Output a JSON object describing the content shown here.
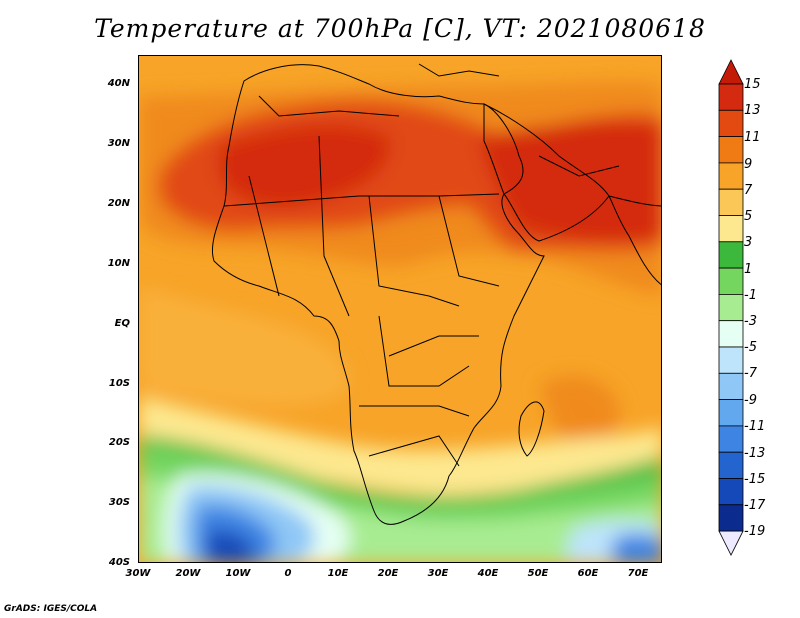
{
  "title": "Temperature at 700hPa [C], VT: 2021080618",
  "credit": "GrADS: IGES/COLA",
  "lat_labels": [
    "40N",
    "30N",
    "20N",
    "10N",
    "EQ",
    "10S",
    "20S",
    "30S",
    "40S"
  ],
  "lon_labels": [
    "30W",
    "20W",
    "10W",
    "0",
    "10E",
    "20E",
    "30E",
    "40E",
    "50E",
    "60E",
    "70E"
  ],
  "colorbar": {
    "labels": [
      "15",
      "13",
      "11",
      "9",
      "7",
      "5",
      "3",
      "1",
      "-1",
      "-3",
      "-5",
      "-7",
      "-9",
      "-11",
      "-13",
      "-15",
      "-17",
      "-19"
    ],
    "colors": [
      "#d42a10",
      "#e24a12",
      "#f07a14",
      "#f7a428",
      "#fbc757",
      "#fde88f",
      "#3cb83c",
      "#74d65e",
      "#a8ec92",
      "#e6fff4",
      "#bde4fb",
      "#8fc7f6",
      "#61a8ee",
      "#3e84e3",
      "#2364cf",
      "#1548b8",
      "#0c2b8e"
    ],
    "top_color": "#c41a08",
    "bottom_color": "#eeeaff"
  }
}
